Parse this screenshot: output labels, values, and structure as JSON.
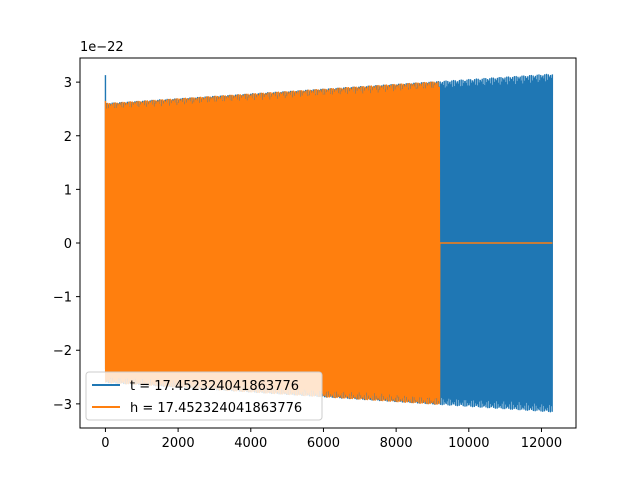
{
  "chart_data": {
    "type": "line",
    "title": "",
    "xlabel": "",
    "ylabel": "",
    "y_offset_label": "1e−22",
    "y_scale_exponent": -22,
    "xlim": [
      -700,
      12950
    ],
    "ylim": [
      -3.45,
      3.45
    ],
    "x_ticks": [
      0,
      2000,
      4000,
      6000,
      8000,
      10000,
      12000
    ],
    "x_tick_labels": [
      "0",
      "2000",
      "4000",
      "6000",
      "8000",
      "10000",
      "12000"
    ],
    "y_ticks": [
      -3,
      -2,
      -1,
      0,
      1,
      2,
      3
    ],
    "y_tick_labels": [
      "−3",
      "−2",
      "−1",
      "0",
      "1",
      "2",
      "3"
    ],
    "grid": false,
    "legend_position": "lower-left",
    "series": [
      {
        "name": "t = 17.452324041863776",
        "color": "#1f77b4",
        "x_start": 0,
        "x_end": 12300,
        "spike_value": 3.13,
        "amplitude_start": 2.6,
        "amplitude_end": 3.15,
        "active_until": 12300
      },
      {
        "name": "h = 17.452324041863776",
        "color": "#ff7f0e",
        "x_start": 0,
        "x_end": 12300,
        "spike_value": 2.65,
        "amplitude_start": 2.6,
        "amplitude_end": 3.15,
        "active_until": 9200
      }
    ]
  }
}
